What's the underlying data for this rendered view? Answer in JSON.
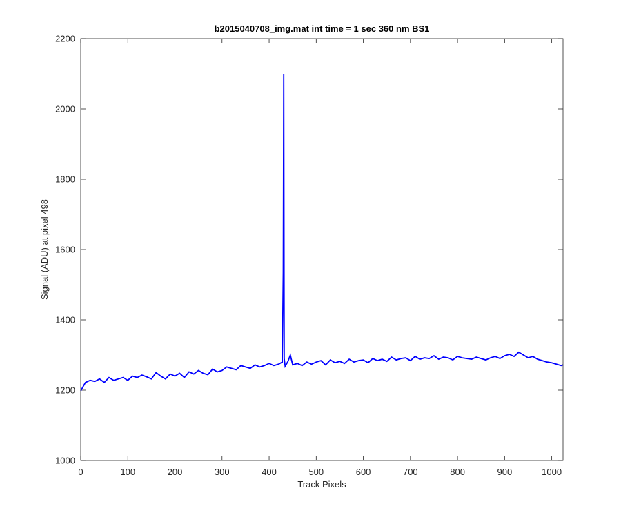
{
  "chart_data": {
    "type": "line",
    "title": "b2015040708_img.mat int time = 1 sec  360 nm BS1",
    "xlabel": "Track Pixels",
    "ylabel": "Signal (ADU) at pixel 498",
    "xlim": [
      0,
      1024
    ],
    "ylim": [
      1000,
      2200
    ],
    "xticks": [
      0,
      100,
      200,
      300,
      400,
      500,
      600,
      700,
      800,
      900,
      1000
    ],
    "yticks": [
      1000,
      1200,
      1400,
      1600,
      1800,
      2000,
      2200
    ],
    "grid": false,
    "legend": "none",
    "line_color": "#0000ff",
    "series": [
      {
        "x": [
          0,
          5,
          10,
          20,
          30,
          40,
          50,
          60,
          70,
          80,
          90,
          100,
          110,
          120,
          130,
          140,
          150,
          160,
          170,
          180,
          190,
          200,
          210,
          220,
          230,
          240,
          250,
          260,
          270,
          280,
          290,
          300,
          310,
          320,
          330,
          340,
          350,
          360,
          370,
          380,
          390,
          400,
          410,
          420,
          428,
          430,
          431,
          432,
          434,
          440,
          445,
          450,
          460,
          470,
          480,
          490,
          500,
          510,
          520,
          530,
          540,
          550,
          560,
          570,
          580,
          590,
          600,
          610,
          620,
          630,
          640,
          650,
          660,
          670,
          680,
          690,
          700,
          710,
          720,
          730,
          740,
          750,
          760,
          770,
          780,
          790,
          800,
          810,
          820,
          830,
          840,
          850,
          860,
          870,
          880,
          890,
          900,
          910,
          920,
          930,
          940,
          950,
          960,
          970,
          980,
          990,
          1000,
          1010,
          1020,
          1024
        ],
        "y": [
          1198,
          1210,
          1222,
          1228,
          1225,
          1232,
          1222,
          1236,
          1228,
          1232,
          1236,
          1228,
          1240,
          1236,
          1243,
          1238,
          1232,
          1250,
          1240,
          1232,
          1246,
          1240,
          1248,
          1236,
          1252,
          1246,
          1256,
          1248,
          1244,
          1260,
          1252,
          1256,
          1266,
          1262,
          1258,
          1270,
          1266,
          1262,
          1272,
          1266,
          1270,
          1276,
          1270,
          1274,
          1280,
          1535,
          2100,
          1290,
          1268,
          1282,
          1300,
          1272,
          1276,
          1270,
          1280,
          1274,
          1280,
          1284,
          1272,
          1286,
          1278,
          1282,
          1276,
          1288,
          1280,
          1284,
          1286,
          1278,
          1290,
          1284,
          1288,
          1282,
          1294,
          1286,
          1290,
          1292,
          1284,
          1296,
          1288,
          1292,
          1290,
          1298,
          1288,
          1294,
          1292,
          1286,
          1296,
          1292,
          1290,
          1288,
          1294,
          1290,
          1286,
          1292,
          1296,
          1290,
          1298,
          1302,
          1296,
          1308,
          1300,
          1292,
          1296,
          1288,
          1284,
          1280,
          1278,
          1274,
          1270,
          1272
        ]
      }
    ]
  }
}
